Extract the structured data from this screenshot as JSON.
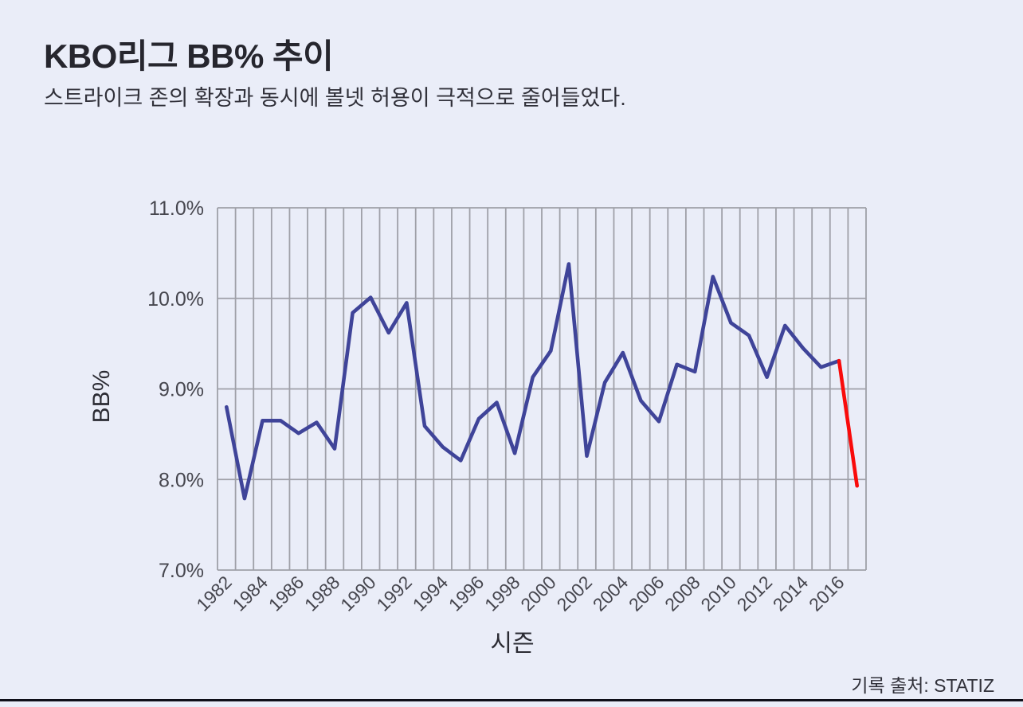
{
  "header": {
    "title": "KBO리그 BB% 추이",
    "subtitle": "스트라이크 존의 확장과 동시에 볼넷 허용이 극적으로 줄어들었다."
  },
  "footer": {
    "source_label": "기록 출처: STATIZ"
  },
  "chart_data": {
    "type": "line",
    "title": "KBO리그 BB% 추이",
    "xlabel": "시즌",
    "ylabel": "BB%",
    "xlim": [
      1981.5,
      2017.5
    ],
    "ylim": [
      7.0,
      11.0
    ],
    "grid": true,
    "legend": "none",
    "x": [
      1982,
      1983,
      1984,
      1985,
      1986,
      1987,
      1988,
      1989,
      1990,
      1991,
      1992,
      1993,
      1994,
      1995,
      1996,
      1997,
      1998,
      1999,
      2000,
      2001,
      2002,
      2003,
      2004,
      2005,
      2006,
      2007,
      2008,
      2009,
      2010,
      2011,
      2012,
      2013,
      2014,
      2015,
      2016,
      2017
    ],
    "series": [
      {
        "name": "BB%",
        "color": "#3f4499",
        "values": [
          8.8,
          7.79,
          8.65,
          8.65,
          8.51,
          8.63,
          8.34,
          9.84,
          10.01,
          9.62,
          9.95,
          8.59,
          8.36,
          8.21,
          8.67,
          8.85,
          8.29,
          9.13,
          9.42,
          10.38,
          8.26,
          9.07,
          9.4,
          8.87,
          8.64,
          9.27,
          9.19,
          10.24,
          9.73,
          9.59,
          9.13,
          9.7,
          9.45,
          9.24,
          9.31,
          7.93
        ]
      }
    ],
    "highlight": {
      "from_year": 2016,
      "to_year": 2017,
      "color": "#f90b0b"
    },
    "xtick_labels": [
      "1982",
      "1984",
      "1986",
      "1988",
      "1990",
      "1992",
      "1994",
      "1996",
      "1998",
      "2000",
      "2002",
      "2004",
      "2006",
      "2008",
      "2010",
      "2012",
      "2014",
      "2016"
    ],
    "ytick_labels": [
      "7.0%",
      "8.0%",
      "9.0%",
      "10.0%",
      "11.0%"
    ],
    "colors": {
      "background": "#eaedf8",
      "gridline": "#9fa0a8",
      "tick_text": "#46464e",
      "axis_title_text": "#2b2b33"
    }
  }
}
